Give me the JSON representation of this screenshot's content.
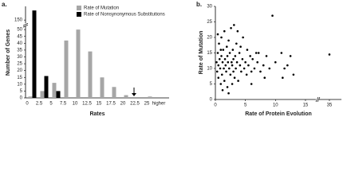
{
  "chart_data": [
    {
      "type": "bar",
      "panel_label": "a.",
      "xlabel": "Rates",
      "ylabel": "Number of Genes",
      "categories": [
        "0",
        "2.5",
        "5",
        "7.5",
        "10",
        "12.5",
        "15",
        "17.5",
        "20",
        "22.5",
        "25",
        "higher"
      ],
      "series": [
        {
          "name": "Rate of Mutation",
          "color": "#a6a6a6",
          "values": [
            1,
            5,
            11,
            42,
            50,
            34,
            15,
            8,
            2,
            0,
            1,
            0
          ]
        },
        {
          "name": "Rate of Nonsynonymous Substitutions",
          "color": "#000000",
          "values": [
            157,
            16,
            5,
            0,
            0,
            0,
            0,
            0,
            0,
            0,
            0,
            0
          ]
        }
      ],
      "ylim": [
        0,
        160
      ],
      "yticks": [
        0,
        5,
        10,
        15,
        20,
        25,
        30,
        35,
        40,
        45,
        50,
        150
      ],
      "legend": "upper center"
    },
    {
      "type": "scatter",
      "panel_label": "b.",
      "xlabel": "Rate of Protein Evolution",
      "ylabel": "Rate of Mutation",
      "color": "#000000",
      "x": [
        0.2,
        0.3,
        0.4,
        0.5,
        0.5,
        0.6,
        0.7,
        0.8,
        0.9,
        1,
        1,
        1.1,
        1.2,
        1.3,
        1.4,
        1.5,
        1.5,
        1.6,
        1.7,
        1.8,
        1.9,
        2,
        2,
        2.1,
        2.2,
        2.3,
        2.4,
        2.5,
        2.6,
        2.7,
        2.8,
        2.9,
        3,
        3,
        3.1,
        3.2,
        3.3,
        3.4,
        3.5,
        3.6,
        3.8,
        4,
        4.1,
        4.3,
        4.5,
        4.6,
        4.8,
        5,
        5.2,
        5.3,
        5.5,
        5.8,
        6,
        6.2,
        6.5,
        6.8,
        7,
        7.2,
        7.5,
        8,
        8.2,
        8.5,
        9,
        9.5,
        10,
        11,
        11.2,
        11.5,
        12,
        12.5,
        13,
        35,
        1.2,
        0.4,
        2.8,
        3.7,
        0.9,
        2.2,
        6,
        4.2
      ],
      "values": [
        12,
        9,
        15,
        11,
        7,
        18,
        13,
        10,
        5,
        14,
        20,
        8,
        12,
        16,
        10,
        6,
        22,
        13,
        11,
        9,
        17,
        14,
        4,
        12,
        19,
        10,
        15,
        8,
        23,
        12,
        11,
        16,
        9,
        13,
        24,
        7,
        14,
        10,
        18,
        12,
        6,
        15,
        11,
        9,
        13,
        20,
        10,
        12,
        8,
        16,
        11,
        14,
        9,
        13,
        10,
        15,
        12,
        15,
        9,
        11,
        7,
        14,
        10,
        27,
        12,
        15,
        7,
        10,
        11,
        14,
        8,
        14.5,
        3,
        21,
        5,
        22,
        16,
        2,
        5,
        17
      ],
      "xlim": [
        0,
        37
      ],
      "xticks": [
        0,
        5,
        10,
        15,
        35
      ],
      "ylim": [
        0,
        30
      ],
      "yticks": [
        0,
        5,
        10,
        15,
        20,
        25,
        30
      ]
    }
  ]
}
